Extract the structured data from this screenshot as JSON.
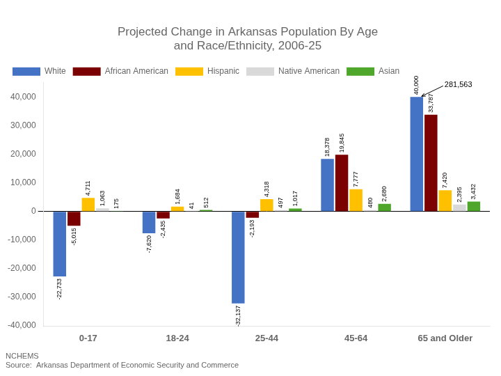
{
  "chart_data": {
    "type": "bar",
    "title": "Projected Change in Arkansas Population By Age\nand Race/Ethnicity, 2006-25",
    "categories": [
      "0-17",
      "18-24",
      "25-44",
      "45-64",
      "65 and Older"
    ],
    "series": [
      {
        "name": "White",
        "color": "#4472C4",
        "values": [
          -22733,
          -7620,
          -32137,
          18378,
          40000
        ],
        "value_labels": [
          "-22,733",
          "-7,620",
          "-32,137",
          "18,378",
          "40,000"
        ]
      },
      {
        "name": "African American",
        "color": "#7B0000",
        "values": [
          -5015,
          -2435,
          -2193,
          19845,
          33787
        ],
        "value_labels": [
          "-5,015",
          "-2,435",
          "-2,193",
          "19,845",
          "33,787"
        ]
      },
      {
        "name": "Hispanic",
        "color": "#FFC000",
        "values": [
          4711,
          1684,
          4318,
          7777,
          7420
        ],
        "value_labels": [
          "4,711",
          "1,684",
          "4,318",
          "7,777",
          "7,420"
        ]
      },
      {
        "name": "Native American",
        "color": "#D9D9D9",
        "values": [
          1063,
          41,
          497,
          480,
          2395
        ],
        "value_labels": [
          "1,063",
          "41",
          "497",
          "480",
          "2,395"
        ]
      },
      {
        "name": "Asian",
        "color": "#4EA72A",
        "values": [
          175,
          512,
          1017,
          2680,
          3432
        ],
        "value_labels": [
          "175",
          "512",
          "1,017",
          "2,680",
          "3,432"
        ]
      }
    ],
    "ylim": [
      -40000,
      45000
    ],
    "yticks": [
      {
        "value": -40000,
        "label": "-40,000"
      },
      {
        "value": -30000,
        "label": "-30,000"
      },
      {
        "value": -20000,
        "label": "-20,000"
      },
      {
        "value": -10000,
        "label": "-10,000"
      },
      0,
      {
        "value": 10000,
        "label": "10,000"
      },
      {
        "value": 20000,
        "label": "20,000"
      },
      {
        "value": 30000,
        "label": "30,000"
      },
      {
        "value": 40000,
        "label": "40,000"
      }
    ],
    "grid": false,
    "legend": "upper left",
    "data_labels": true,
    "annotations": [
      {
        "text": "281,563",
        "series": "White",
        "category": "65 and Older"
      }
    ],
    "footer": [
      "NCHEMS",
      "Source:  Arkansas Department of Economic Security and Commerce"
    ]
  }
}
